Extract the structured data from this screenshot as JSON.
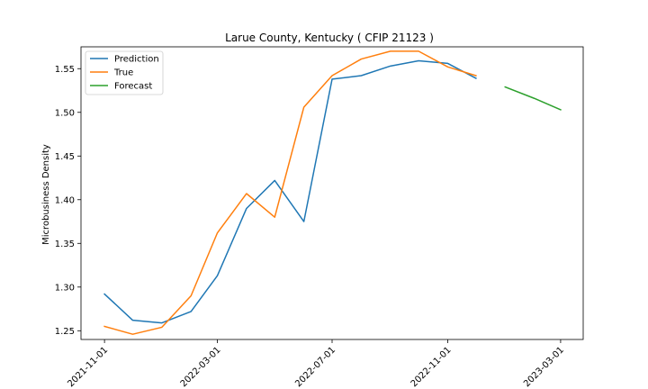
{
  "chart_data": {
    "type": "line",
    "title": "Larue County, Kentucky ( CFIP 21123 )",
    "xlabel": "",
    "ylabel": "Microbusiness Density",
    "xlim": [
      "2021-10-07",
      "2023-03-25"
    ],
    "ylim": [
      1.24,
      1.575
    ],
    "x_ticks": [
      "2021-11-01",
      "2022-03-01",
      "2022-07-01",
      "2022-11-01",
      "2023-03-01"
    ],
    "y_ticks": [
      1.25,
      1.3,
      1.35,
      1.4,
      1.45,
      1.5,
      1.55
    ],
    "y_tick_labels": [
      "1.25",
      "1.30",
      "1.35",
      "1.40",
      "1.45",
      "1.50",
      "1.55"
    ],
    "grid": false,
    "legend_position": "top-left",
    "series": [
      {
        "name": "Prediction",
        "color": "#1f77b4",
        "x": [
          "2021-11-01",
          "2021-12-01",
          "2022-01-01",
          "2022-02-01",
          "2022-03-01",
          "2022-04-01",
          "2022-05-01",
          "2022-06-01",
          "2022-07-01",
          "2022-08-01",
          "2022-09-01",
          "2022-10-01",
          "2022-11-01",
          "2022-12-01"
        ],
        "values": [
          1.292,
          1.262,
          1.259,
          1.272,
          1.313,
          1.39,
          1.422,
          1.375,
          1.538,
          1.542,
          1.553,
          1.559,
          1.556,
          1.539
        ]
      },
      {
        "name": "True",
        "color": "#ff7f0e",
        "x": [
          "2021-11-01",
          "2021-12-01",
          "2022-01-01",
          "2022-02-01",
          "2022-03-01",
          "2022-04-01",
          "2022-05-01",
          "2022-06-01",
          "2022-07-01",
          "2022-08-01",
          "2022-09-01",
          "2022-10-01",
          "2022-11-01",
          "2022-12-01"
        ],
        "values": [
          1.255,
          1.246,
          1.254,
          1.29,
          1.362,
          1.407,
          1.38,
          1.506,
          1.542,
          1.561,
          1.57,
          1.57,
          1.552,
          1.542
        ]
      },
      {
        "name": "Forecast",
        "color": "#2ca02c",
        "x": [
          "2023-01-01",
          "2023-02-01",
          "2023-03-01"
        ],
        "values": [
          1.529,
          1.516,
          1.503
        ]
      }
    ]
  }
}
